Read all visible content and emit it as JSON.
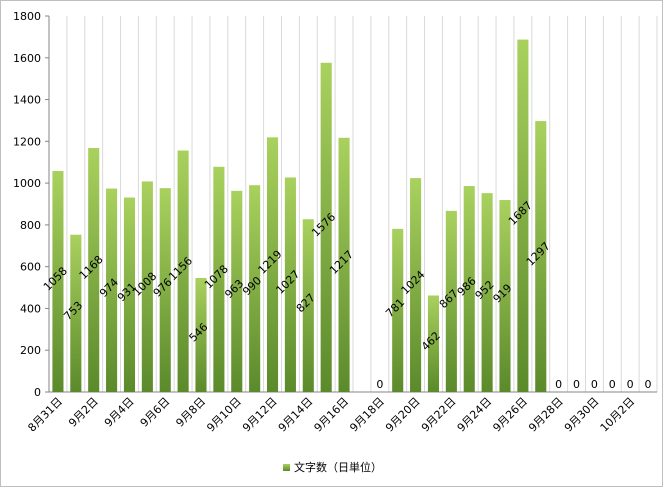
{
  "chart_data": {
    "type": "bar",
    "categories": [
      "8月31日",
      "9月1日",
      "9月2日",
      "9月3日",
      "9月4日",
      "9月5日",
      "9月6日",
      "9月7日",
      "9月8日",
      "9月9日",
      "9月10日",
      "9月11日",
      "9月12日",
      "9月13日",
      "9月14日",
      "9月15日",
      "9月16日",
      "9月17日",
      "9月18日",
      "9月19日",
      "9月20日",
      "9月21日",
      "9月22日",
      "9月23日",
      "9月24日",
      "9月25日",
      "9月26日",
      "9月27日",
      "9月28日",
      "9月29日",
      "9月30日",
      "10月1日",
      "10月2日",
      "10月3日"
    ],
    "x_tick_labels": [
      "8月31日",
      "9月2日",
      "9月4日",
      "9月6日",
      "9月8日",
      "9月10日",
      "9月12日",
      "9月14日",
      "9月16日",
      "9月18日",
      "9月20日",
      "9月22日",
      "9月24日",
      "9月26日",
      "9月28日",
      "9月30日",
      "10月2日"
    ],
    "series": [
      {
        "name": "文字数（日単位）",
        "values": [
          1058,
          753,
          1168,
          974,
          931,
          1008,
          976,
          1156,
          546,
          1078,
          963,
          990,
          1219,
          1027,
          827,
          1576,
          1217,
          null,
          0,
          781,
          1024,
          462,
          867,
          986,
          952,
          919,
          1687,
          1297,
          0,
          0,
          0,
          0,
          0,
          0
        ],
        "data_labels": [
          "1058",
          "753",
          "1168",
          "974",
          "931",
          "1008",
          "976",
          "1156",
          "546",
          "1078",
          "963",
          "990",
          "1219",
          "1027",
          "827",
          "1576",
          "1217",
          "",
          "0",
          "781",
          "1024",
          "462",
          "867",
          "986",
          "952",
          "919",
          "1687",
          "1297",
          "0",
          "0",
          "0",
          "0",
          "0",
          "0"
        ]
      }
    ],
    "y_ticks": [
      0,
      200,
      400,
      600,
      800,
      1000,
      1200,
      1400,
      1600,
      1800
    ],
    "ylim": [
      0,
      1800
    ],
    "grid": "vertical",
    "legend_position": "bottom",
    "bar_color_top": "#a9d15e",
    "bar_color_bottom": "#5b8a2b",
    "title": "",
    "xlabel": "",
    "ylabel": ""
  }
}
